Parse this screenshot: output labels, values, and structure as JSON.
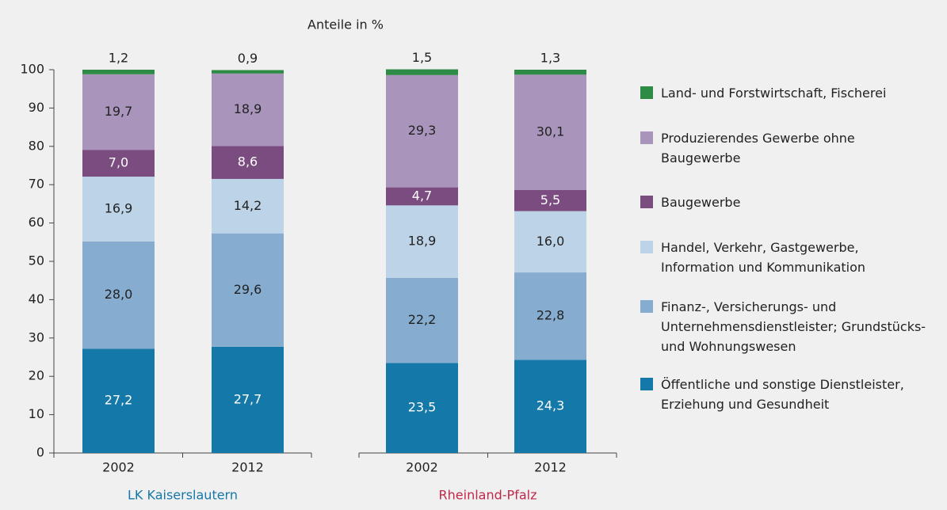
{
  "chart_data": {
    "type": "stacked_bar",
    "ylabel": "Anteile in %",
    "categories": [
      "2002",
      "2012",
      "2002",
      "2012"
    ],
    "groups": [
      {
        "label": "LK Kaiserslautern",
        "color": "#1478a8"
      },
      {
        "label": "Rheinland-Pfalz",
        "color": "#c0284a"
      }
    ],
    "ylim": [
      0,
      100
    ],
    "yticks": [
      0,
      10,
      20,
      30,
      40,
      50,
      60,
      70,
      80,
      90,
      100
    ],
    "series": [
      {
        "name": "Öffentliche und sonstige Dienstleister, Erziehung und Gesundheit",
        "color": "#1478a8",
        "values": [
          27.2,
          27.7,
          23.5,
          24.3
        ],
        "value_labels": [
          "27,2",
          "27,7",
          "23,5",
          "24,3"
        ]
      },
      {
        "name": "Finanz-, Versicherungs- und Unternehmensdienstleister; Grundstücks- und Wohnungswesen",
        "color": "#86acd0",
        "values": [
          28.0,
          29.6,
          22.2,
          22.8
        ],
        "value_labels": [
          "28,0",
          "29,6",
          "22,2",
          "22,8"
        ]
      },
      {
        "name": "Handel, Verkehr, Gastgewerbe, Information und Kommunikation",
        "color": "#bdd3e8",
        "values": [
          16.9,
          14.2,
          18.9,
          16.0
        ],
        "value_labels": [
          "16,9",
          "14,2",
          "18,9",
          "16,0"
        ]
      },
      {
        "name": "Baugewerbe",
        "color": "#7b4c80",
        "values": [
          7.0,
          8.6,
          4.7,
          5.5
        ],
        "value_labels": [
          "7,0",
          "8,6",
          "4,7",
          "5,5"
        ]
      },
      {
        "name": "Produzierendes Gewerbe ohne Baugewerbe",
        "color": "#a994bc",
        "values": [
          19.7,
          18.9,
          29.3,
          30.1
        ],
        "value_labels": [
          "19,7",
          "18,9",
          "29,3",
          "30,1"
        ]
      },
      {
        "name": "Land- und Forstwirtschaft, Fischerei",
        "color": "#2e8b45",
        "values": [
          1.2,
          0.9,
          1.5,
          1.3
        ],
        "value_labels": [
          "1,2",
          "0,9",
          "1,5",
          "1,3"
        ]
      }
    ]
  }
}
